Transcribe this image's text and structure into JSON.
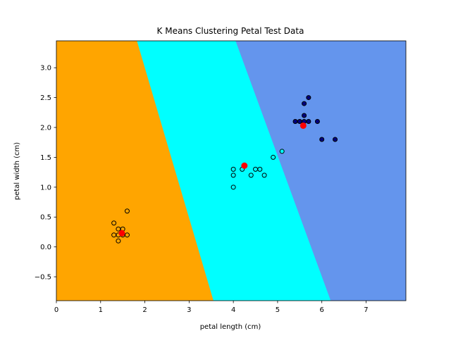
{
  "chart_data": {
    "type": "scatter",
    "title": "K Means Clustering Petal Test Data",
    "xlabel": "petal length (cm)",
    "ylabel": "petal width (cm)",
    "xlim": [
      0,
      7.9
    ],
    "ylim": [
      -0.9,
      3.45
    ],
    "xticks": [
      0,
      1,
      2,
      3,
      4,
      5,
      6,
      7
    ],
    "yticks": [
      -0.5,
      0.0,
      0.5,
      1.0,
      1.5,
      2.0,
      2.5,
      3.0
    ],
    "ytick_labels": [
      "−0.5",
      "0.0",
      "0.5",
      "1.0",
      "1.5",
      "2.0",
      "2.5",
      "3.0"
    ],
    "grid": false,
    "legend": "none",
    "regions": [
      {
        "color": "#ffa500",
        "boundary_right": {
          "top_x": 1.82,
          "bottom_x": 3.55
        }
      },
      {
        "color": "#00ffff",
        "boundary_right": {
          "top_x": 4.05,
          "bottom_x": 6.2
        }
      },
      {
        "color": "#6495ed"
      }
    ],
    "series": [
      {
        "color": "#ffa500",
        "edge_color": "#000000",
        "points": [
          [
            1.3,
            0.4
          ],
          [
            1.6,
            0.6
          ],
          [
            1.4,
            0.3
          ],
          [
            1.3,
            0.2
          ],
          [
            1.4,
            0.2
          ],
          [
            1.5,
            0.2
          ],
          [
            1.4,
            0.1
          ],
          [
            1.5,
            0.3
          ],
          [
            1.6,
            0.2
          ]
        ]
      },
      {
        "color": "#00ffff",
        "edge_color": "#000000",
        "points": [
          [
            4.0,
            1.3
          ],
          [
            4.0,
            1.2
          ],
          [
            4.0,
            1.0
          ],
          [
            4.2,
            1.3
          ],
          [
            4.4,
            1.2
          ],
          [
            4.5,
            1.3
          ],
          [
            4.6,
            1.3
          ],
          [
            4.7,
            1.2
          ],
          [
            4.9,
            1.5
          ],
          [
            5.1,
            1.6
          ]
        ]
      },
      {
        "color": "#000080",
        "edge_color": "#000000",
        "points": [
          [
            5.4,
            2.1
          ],
          [
            5.5,
            2.1
          ],
          [
            5.6,
            2.2
          ],
          [
            5.6,
            2.4
          ],
          [
            5.7,
            2.5
          ],
          [
            5.7,
            2.1
          ],
          [
            5.6,
            2.1
          ],
          [
            5.9,
            2.1
          ],
          [
            6.0,
            1.8
          ],
          [
            6.3,
            1.8
          ]
        ]
      }
    ],
    "centroids": {
      "color": "#ff0000",
      "points": [
        [
          1.48,
          0.23
        ],
        [
          4.25,
          1.36
        ],
        [
          5.58,
          2.03
        ]
      ]
    }
  }
}
